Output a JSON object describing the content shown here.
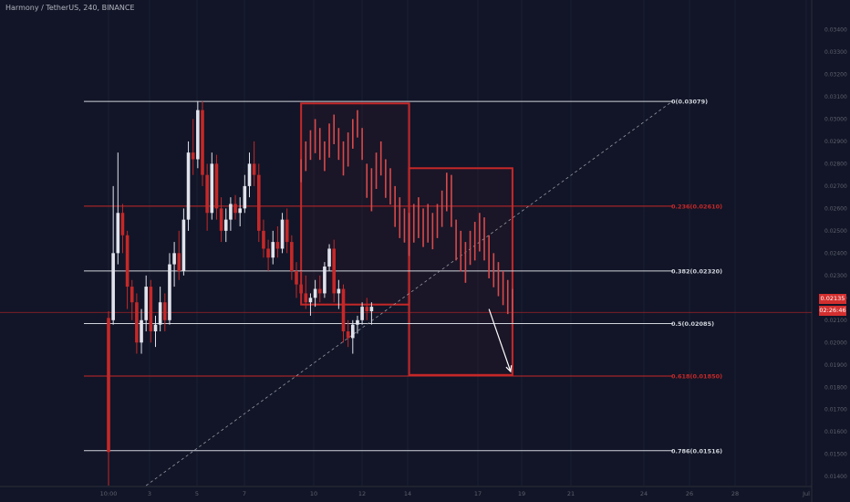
{
  "header": {
    "title": "Harmony / TetherUS, 240, BINANCE"
  },
  "colors": {
    "background": "#111527",
    "bull": "#e0e3eb",
    "bear": "#c62828",
    "projection": "#d84a4a",
    "fib_white": "#d1d4dc",
    "fib_red": "#c62828",
    "box": "#c62828",
    "trendline": "#9598a1",
    "axis_text": "#5d606b"
  },
  "price_tags": {
    "current": "0.02135",
    "countdown": "02:26:46"
  },
  "chart_data": {
    "type": "candlestick",
    "title": "Harmony / TetherUS, 240, BINANCE",
    "ylim": [
      0.0136,
      0.035
    ],
    "y_ticks": [
      "0.03400",
      "0.03300",
      "0.03200",
      "0.03100",
      "0.03000",
      "0.02900",
      "0.02800",
      "0.02700",
      "0.02600",
      "0.02500",
      "0.02400",
      "0.02300",
      "0.02200",
      "0.02100",
      "0.02000",
      "0.01900",
      "0.01800",
      "0.01700",
      "0.01600",
      "0.01500",
      "0.01400"
    ],
    "x_ticks": [
      "10:00",
      "3",
      "5",
      "7",
      "10",
      "12",
      "14",
      "17",
      "19",
      "21",
      "24",
      "26",
      "28",
      "Jul"
    ],
    "fib_levels": [
      {
        "label": "0(0.03079)",
        "value": 0.03079,
        "color": "white"
      },
      {
        "label": "0.236(0.02610)",
        "value": 0.0261,
        "color": "red"
      },
      {
        "label": "0.382(0.02320)",
        "value": 0.0232,
        "color": "white"
      },
      {
        "label": "0.5(0.02085)",
        "value": 0.02085,
        "color": "white"
      },
      {
        "label": "0.618(0.01850)",
        "value": 0.0185,
        "color": "red"
      },
      {
        "label": "0.786(0.01516)",
        "value": 0.01516,
        "color": "white"
      }
    ],
    "current_price": 0.02135,
    "boxes": [
      {
        "x0": 41,
        "x1": 64,
        "top": 0.0307,
        "bottom": 0.0217
      },
      {
        "x0": 64,
        "x1": 86,
        "top": 0.0278,
        "bottom": 0.01855
      }
    ],
    "trendline": {
      "x0": 8,
      "y0": 0.0136,
      "x1": 120,
      "y1": 0.03079
    },
    "arrow": {
      "x0": 81,
      "y0": 0.0215,
      "x1": 86,
      "y1": 0.0187
    },
    "candles": [
      {
        "x": 0,
        "o": 0.0211,
        "h": 0.0214,
        "l": 0.0136,
        "c": 0.0151
      },
      {
        "x": 1,
        "o": 0.021,
        "h": 0.027,
        "l": 0.0208,
        "c": 0.024
      },
      {
        "x": 2,
        "o": 0.024,
        "h": 0.0285,
        "l": 0.0235,
        "c": 0.0258
      },
      {
        "x": 3,
        "o": 0.0258,
        "h": 0.0262,
        "l": 0.024,
        "c": 0.0248
      },
      {
        "x": 4,
        "o": 0.0248,
        "h": 0.025,
        "l": 0.0215,
        "c": 0.0225
      },
      {
        "x": 5,
        "o": 0.0225,
        "h": 0.0228,
        "l": 0.021,
        "c": 0.0218
      },
      {
        "x": 6,
        "o": 0.0218,
        "h": 0.0222,
        "l": 0.0195,
        "c": 0.02
      },
      {
        "x": 7,
        "o": 0.02,
        "h": 0.0215,
        "l": 0.0195,
        "c": 0.021
      },
      {
        "x": 8,
        "o": 0.021,
        "h": 0.023,
        "l": 0.0205,
        "c": 0.0225
      },
      {
        "x": 9,
        "o": 0.0225,
        "h": 0.0228,
        "l": 0.02,
        "c": 0.0205
      },
      {
        "x": 10,
        "o": 0.0205,
        "h": 0.0212,
        "l": 0.0198,
        "c": 0.0208
      },
      {
        "x": 11,
        "o": 0.0208,
        "h": 0.0225,
        "l": 0.0205,
        "c": 0.0218
      },
      {
        "x": 12,
        "o": 0.0218,
        "h": 0.0222,
        "l": 0.0205,
        "c": 0.021
      },
      {
        "x": 13,
        "o": 0.021,
        "h": 0.024,
        "l": 0.0208,
        "c": 0.0235
      },
      {
        "x": 14,
        "o": 0.0235,
        "h": 0.0245,
        "l": 0.0225,
        "c": 0.024
      },
      {
        "x": 15,
        "o": 0.024,
        "h": 0.025,
        "l": 0.0228,
        "c": 0.0232
      },
      {
        "x": 16,
        "o": 0.0232,
        "h": 0.026,
        "l": 0.023,
        "c": 0.0255
      },
      {
        "x": 17,
        "o": 0.0255,
        "h": 0.029,
        "l": 0.025,
        "c": 0.0285
      },
      {
        "x": 18,
        "o": 0.0285,
        "h": 0.03,
        "l": 0.0275,
        "c": 0.0282
      },
      {
        "x": 19,
        "o": 0.0282,
        "h": 0.0308,
        "l": 0.0278,
        "c": 0.0304
      },
      {
        "x": 20,
        "o": 0.0304,
        "h": 0.0308,
        "l": 0.027,
        "c": 0.0275
      },
      {
        "x": 21,
        "o": 0.0275,
        "h": 0.028,
        "l": 0.025,
        "c": 0.0258
      },
      {
        "x": 22,
        "o": 0.0258,
        "h": 0.0285,
        "l": 0.0255,
        "c": 0.028
      },
      {
        "x": 23,
        "o": 0.028,
        "h": 0.0284,
        "l": 0.0255,
        "c": 0.026
      },
      {
        "x": 24,
        "o": 0.026,
        "h": 0.0265,
        "l": 0.0245,
        "c": 0.025
      },
      {
        "x": 25,
        "o": 0.025,
        "h": 0.026,
        "l": 0.0245,
        "c": 0.0255
      },
      {
        "x": 26,
        "o": 0.0255,
        "h": 0.0265,
        "l": 0.025,
        "c": 0.0262
      },
      {
        "x": 27,
        "o": 0.0262,
        "h": 0.0266,
        "l": 0.0255,
        "c": 0.0258
      },
      {
        "x": 28,
        "o": 0.0258,
        "h": 0.0265,
        "l": 0.0252,
        "c": 0.026
      },
      {
        "x": 29,
        "o": 0.026,
        "h": 0.0275,
        "l": 0.0258,
        "c": 0.027
      },
      {
        "x": 30,
        "o": 0.027,
        "h": 0.0285,
        "l": 0.0265,
        "c": 0.028
      },
      {
        "x": 31,
        "o": 0.028,
        "h": 0.029,
        "l": 0.027,
        "c": 0.0275
      },
      {
        "x": 32,
        "o": 0.0275,
        "h": 0.028,
        "l": 0.0245,
        "c": 0.025
      },
      {
        "x": 33,
        "o": 0.025,
        "h": 0.0255,
        "l": 0.0238,
        "c": 0.0242
      },
      {
        "x": 34,
        "o": 0.0242,
        "h": 0.0246,
        "l": 0.0232,
        "c": 0.0238
      },
      {
        "x": 35,
        "o": 0.0238,
        "h": 0.025,
        "l": 0.0235,
        "c": 0.0245
      },
      {
        "x": 36,
        "o": 0.0245,
        "h": 0.0252,
        "l": 0.0238,
        "c": 0.0242
      },
      {
        "x": 37,
        "o": 0.0242,
        "h": 0.0258,
        "l": 0.024,
        "c": 0.0255
      },
      {
        "x": 38,
        "o": 0.0255,
        "h": 0.026,
        "l": 0.024,
        "c": 0.0245
      },
      {
        "x": 39,
        "o": 0.0245,
        "h": 0.0248,
        "l": 0.0228,
        "c": 0.0232
      },
      {
        "x": 40,
        "o": 0.0232,
        "h": 0.0236,
        "l": 0.022,
        "c": 0.0226
      },
      {
        "x": 41,
        "o": 0.0226,
        "h": 0.0232,
        "l": 0.0218,
        "c": 0.0222
      },
      {
        "x": 42,
        "o": 0.0222,
        "h": 0.023,
        "l": 0.0215,
        "c": 0.0218
      },
      {
        "x": 43,
        "o": 0.0218,
        "h": 0.0222,
        "l": 0.0212,
        "c": 0.022
      },
      {
        "x": 44,
        "o": 0.022,
        "h": 0.0228,
        "l": 0.0216,
        "c": 0.0224
      },
      {
        "x": 45,
        "o": 0.0224,
        "h": 0.023,
        "l": 0.0218,
        "c": 0.0222
      },
      {
        "x": 46,
        "o": 0.0222,
        "h": 0.0236,
        "l": 0.022,
        "c": 0.0234
      },
      {
        "x": 47,
        "o": 0.0234,
        "h": 0.0244,
        "l": 0.0232,
        "c": 0.0242
      },
      {
        "x": 48,
        "o": 0.0242,
        "h": 0.0246,
        "l": 0.0218,
        "c": 0.0222
      },
      {
        "x": 49,
        "o": 0.0222,
        "h": 0.0228,
        "l": 0.0215,
        "c": 0.0224
      },
      {
        "x": 50,
        "o": 0.0224,
        "h": 0.0226,
        "l": 0.02,
        "c": 0.0205
      },
      {
        "x": 51,
        "o": 0.0205,
        "h": 0.021,
        "l": 0.0198,
        "c": 0.0202
      },
      {
        "x": 52,
        "o": 0.0202,
        "h": 0.021,
        "l": 0.0195,
        "c": 0.0208
      },
      {
        "x": 53,
        "o": 0.0208,
        "h": 0.0212,
        "l": 0.0204,
        "c": 0.021
      },
      {
        "x": 54,
        "o": 0.021,
        "h": 0.0218,
        "l": 0.0208,
        "c": 0.0216
      },
      {
        "x": 55,
        "o": 0.0216,
        "h": 0.022,
        "l": 0.021,
        "c": 0.0214
      },
      {
        "x": 56,
        "o": 0.0214,
        "h": 0.0218,
        "l": 0.0208,
        "c": 0.0216
      }
    ],
    "projection": [
      {
        "x": 41,
        "h": 0.0282,
        "l": 0.0275
      },
      {
        "x": 42,
        "h": 0.029,
        "l": 0.028
      },
      {
        "x": 43,
        "h": 0.0295,
        "l": 0.0285
      },
      {
        "x": 44,
        "h": 0.03,
        "l": 0.0288
      },
      {
        "x": 45,
        "h": 0.0296,
        "l": 0.0285
      },
      {
        "x": 46,
        "h": 0.029,
        "l": 0.028
      },
      {
        "x": 47,
        "h": 0.0298,
        "l": 0.0286
      },
      {
        "x": 48,
        "h": 0.0302,
        "l": 0.0292
      },
      {
        "x": 49,
        "h": 0.0296,
        "l": 0.0285
      },
      {
        "x": 50,
        "h": 0.029,
        "l": 0.0278
      },
      {
        "x": 51,
        "h": 0.0294,
        "l": 0.0282
      },
      {
        "x": 52,
        "h": 0.03,
        "l": 0.029
      },
      {
        "x": 53,
        "h": 0.0304,
        "l": 0.0295
      },
      {
        "x": 54,
        "h": 0.0296,
        "l": 0.0285
      },
      {
        "x": 55,
        "h": 0.028,
        "l": 0.0268
      },
      {
        "x": 56,
        "h": 0.0278,
        "l": 0.0262
      },
      {
        "x": 57,
        "h": 0.0285,
        "l": 0.0272
      },
      {
        "x": 58,
        "h": 0.029,
        "l": 0.0278
      },
      {
        "x": 59,
        "h": 0.0282,
        "l": 0.0268
      },
      {
        "x": 60,
        "h": 0.0278,
        "l": 0.0265
      },
      {
        "x": 61,
        "h": 0.027,
        "l": 0.0255
      },
      {
        "x": 62,
        "h": 0.0265,
        "l": 0.025
      },
      {
        "x": 63,
        "h": 0.026,
        "l": 0.0248
      },
      {
        "x": 64,
        "h": 0.0258,
        "l": 0.0242
      },
      {
        "x": 65,
        "h": 0.0262,
        "l": 0.0248
      },
      {
        "x": 66,
        "h": 0.0265,
        "l": 0.025
      },
      {
        "x": 67,
        "h": 0.026,
        "l": 0.0246
      },
      {
        "x": 68,
        "h": 0.0262,
        "l": 0.0248
      },
      {
        "x": 69,
        "h": 0.0258,
        "l": 0.0245
      },
      {
        "x": 70,
        "h": 0.0262,
        "l": 0.025
      },
      {
        "x": 71,
        "h": 0.0268,
        "l": 0.0255
      },
      {
        "x": 72,
        "h": 0.0276,
        "l": 0.0262
      },
      {
        "x": 73,
        "h": 0.0275,
        "l": 0.0255
      },
      {
        "x": 74,
        "h": 0.0255,
        "l": 0.024
      },
      {
        "x": 75,
        "h": 0.025,
        "l": 0.0235
      },
      {
        "x": 76,
        "h": 0.0245,
        "l": 0.023
      },
      {
        "x": 77,
        "h": 0.025,
        "l": 0.0238
      },
      {
        "x": 78,
        "h": 0.0254,
        "l": 0.024
      },
      {
        "x": 79,
        "h": 0.0258,
        "l": 0.0244
      },
      {
        "x": 80,
        "h": 0.0256,
        "l": 0.024
      },
      {
        "x": 81,
        "h": 0.0248,
        "l": 0.0232
      },
      {
        "x": 82,
        "h": 0.024,
        "l": 0.0228
      },
      {
        "x": 83,
        "h": 0.0236,
        "l": 0.0224
      },
      {
        "x": 84,
        "h": 0.0232,
        "l": 0.022
      },
      {
        "x": 85,
        "h": 0.0228,
        "l": 0.0216
      },
      {
        "x": 86,
        "h": 0.0224,
        "l": 0.0212
      }
    ]
  }
}
